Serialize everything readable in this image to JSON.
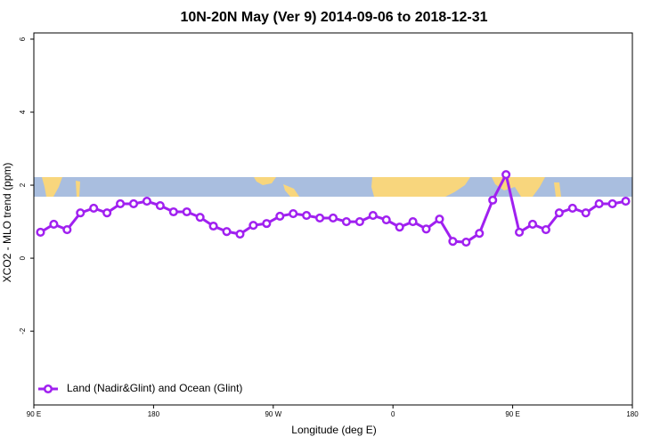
{
  "chart_data": {
    "type": "line",
    "title": "10N-20N May (Ver 9)   2014-09-06 to 2018-12-31",
    "xlabel": "Longitude (deg E)",
    "ylabel": "XCO2 - MLO trend (ppm)",
    "xlim": [
      90,
      540
    ],
    "ylim": [
      -4.02,
      6.17
    ],
    "xticks": [
      {
        "value": 90,
        "label": "90 E"
      },
      {
        "value": 180,
        "label": "180"
      },
      {
        "value": 270,
        "label": "90 W"
      },
      {
        "value": 360,
        "label": "0"
      },
      {
        "value": 450,
        "label": "90 E"
      },
      {
        "value": 540,
        "label": "180"
      }
    ],
    "yticks": [
      -2,
      0,
      2,
      4,
      6
    ],
    "legend": "bottom-left",
    "x": [
      95,
      105,
      115,
      125,
      135,
      145,
      155,
      165,
      175,
      185,
      195,
      205,
      215,
      225,
      235,
      245,
      255,
      265,
      275,
      285,
      295,
      305,
      315,
      325,
      335,
      345,
      355,
      365,
      375,
      385,
      395,
      405,
      415,
      425,
      435,
      445,
      455,
      465,
      475,
      485,
      495,
      505,
      515,
      525,
      535
    ],
    "series": [
      {
        "name": "Land (Nadir&Glint) and Ocean (Glint)",
        "color": "#a020f0",
        "values": [
          0.71,
          0.93,
          0.78,
          1.24,
          1.37,
          1.24,
          1.49,
          1.49,
          1.56,
          1.44,
          1.27,
          1.27,
          1.12,
          0.88,
          0.73,
          0.66,
          0.9,
          0.95,
          1.15,
          1.22,
          1.17,
          1.1,
          1.1,
          1.0,
          1.0,
          1.17,
          1.05,
          0.85,
          1.0,
          0.8,
          1.07,
          0.46,
          0.44,
          0.68,
          1.59,
          2.29,
          0.71,
          0.93,
          0.78,
          1.24,
          1.37,
          1.24,
          1.49,
          1.49,
          1.56
        ]
      }
    ]
  }
}
